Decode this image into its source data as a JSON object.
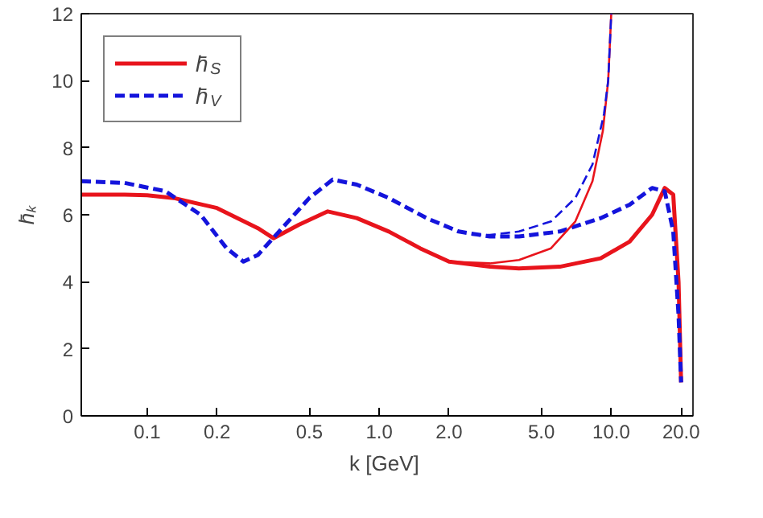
{
  "chart_data": {
    "type": "line",
    "xlabel": "k  [GeV]",
    "ylabel": "h̄ₖ",
    "log": "x",
    "xlim": [
      0.052,
      22.5
    ],
    "xticks": [
      {
        "value": 0.1,
        "label": "0.1"
      },
      {
        "value": 0.2,
        "label": "0.2"
      },
      {
        "value": 0.5,
        "label": "0.5"
      },
      {
        "value": 1,
        "label": "1.0"
      },
      {
        "value": 2,
        "label": "2.0"
      },
      {
        "value": 5,
        "label": "5.0"
      },
      {
        "value": 10,
        "label": "10.0"
      },
      {
        "value": 20,
        "label": "20.0"
      }
    ],
    "ylim": [
      0,
      12
    ],
    "yticks": [
      0,
      2,
      4,
      6,
      8,
      10,
      12
    ],
    "grid": false,
    "legend": "top left",
    "marker": "none",
    "series": [
      {
        "name": "h̄$_{S}$",
        "color": "#e8141c",
        "line_style": "solid",
        "x": [
          0.052,
          0.08,
          0.1,
          0.13,
          0.2,
          0.3,
          0.35,
          0.45,
          0.6,
          0.8,
          1.1,
          1.5,
          2.0,
          3,
          4,
          6,
          9,
          12,
          15,
          17,
          18.5,
          19.5,
          20
        ],
        "values": [
          6.6,
          6.6,
          6.58,
          6.5,
          6.2,
          5.6,
          5.3,
          5.7,
          6.1,
          5.9,
          5.5,
          5.0,
          4.6,
          4.45,
          4.4,
          4.45,
          4.7,
          5.2,
          6.0,
          6.8,
          6.6,
          4.0,
          1.0
        ]
      },
      {
        "name": "h̄$_{V}$",
        "color": "#1414dc",
        "line_style": "dashed",
        "x": [
          0.052,
          0.08,
          0.12,
          0.17,
          0.22,
          0.26,
          0.3,
          0.37,
          0.5,
          0.63,
          0.8,
          1.1,
          1.6,
          2.2,
          3,
          4,
          6,
          9,
          12,
          15,
          17,
          18.5,
          19.5,
          20
        ],
        "values": [
          7.0,
          6.95,
          6.7,
          6.0,
          5.0,
          4.6,
          4.8,
          5.5,
          6.5,
          7.05,
          6.9,
          6.5,
          5.9,
          5.5,
          5.35,
          5.35,
          5.5,
          5.9,
          6.3,
          6.8,
          6.7,
          5.5,
          3.0,
          1.0
        ]
      },
      {
        "color": "#e8141c",
        "line_style": "solid",
        "x": [
          2.0,
          3,
          4,
          5.5,
          7,
          8.3,
          9.2,
          9.7,
          10
        ],
        "values": [
          4.6,
          4.55,
          4.65,
          5.0,
          5.8,
          7.0,
          8.5,
          10.0,
          12.0
        ]
      },
      {
        "color": "#1414dc",
        "line_style": "dashed",
        "x": [
          2.5,
          3,
          4,
          5.5,
          7,
          8.3,
          9.3,
          9.7,
          10
        ],
        "values": [
          5.4,
          5.4,
          5.5,
          5.8,
          6.5,
          7.5,
          9.0,
          10.0,
          12.0
        ]
      }
    ]
  }
}
